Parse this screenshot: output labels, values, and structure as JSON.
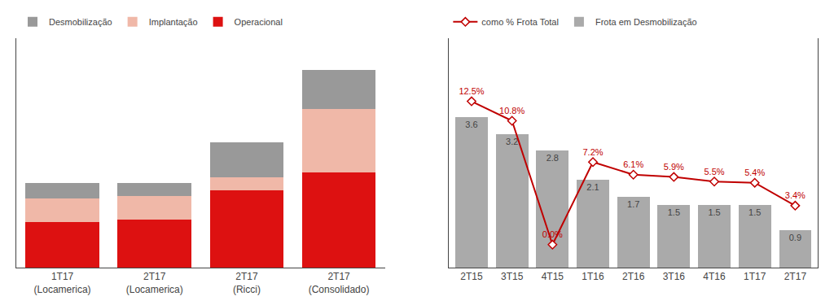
{
  "chart_data": [
    {
      "type": "bar",
      "stacked": true,
      "categories": [
        "1T17\n(Locamerica)",
        "2T17\n(Locamerica)",
        "2T17\n(Ricci)",
        "2T17\n(Consolidado)"
      ],
      "series": [
        {
          "name": "Operacional",
          "color": "#dd1111",
          "values": [
            13000,
            13500,
            22000,
            27000
          ]
        },
        {
          "name": "Implantação",
          "color": "#f0b8a8",
          "values": [
            6500,
            6800,
            3500,
            18000
          ]
        },
        {
          "name": "Desmobilização",
          "color": "#999999",
          "values": [
            4500,
            3700,
            10000,
            11000
          ]
        }
      ],
      "ylim": [
        0,
        65000
      ],
      "yticks": [],
      "tick_labels": "x",
      "legend": "upper left",
      "grid": false
    },
    {
      "type": "bar",
      "categories": [
        "2T15",
        "3T15",
        "4T15",
        "1T16",
        "2T16",
        "3T16",
        "4T16",
        "1T17",
        "2T17"
      ],
      "series": [
        {
          "name": "Frota em Desmobilização",
          "type": "bar",
          "color": "#aaaaaa",
          "values": [
            3.6,
            3.2,
            2.8,
            2.1,
            1.7,
            1.5,
            1.5,
            1.5,
            0.9
          ]
        },
        {
          "name": "como % Frota Total",
          "type": "line",
          "axis": "y2",
          "color": "#c00000",
          "marker": "diamond",
          "values": [
            12.5,
            10.8,
            0.0,
            7.2,
            6.1,
            5.9,
            5.5,
            5.4,
            3.4
          ],
          "value_labels": [
            "12.5%",
            "10.8%",
            "0.0%",
            "7.2%",
            "6.1%",
            "5.9%",
            "5.5%",
            "5.4%",
            "3.4%"
          ]
        }
      ],
      "ylim": [
        0,
        5.5
      ],
      "yticks": [],
      "y2lim": [
        -2,
        18
      ],
      "y2ticks": [],
      "tick_labels": "x",
      "data_labels": true,
      "legend": "upper left",
      "grid": false
    }
  ]
}
